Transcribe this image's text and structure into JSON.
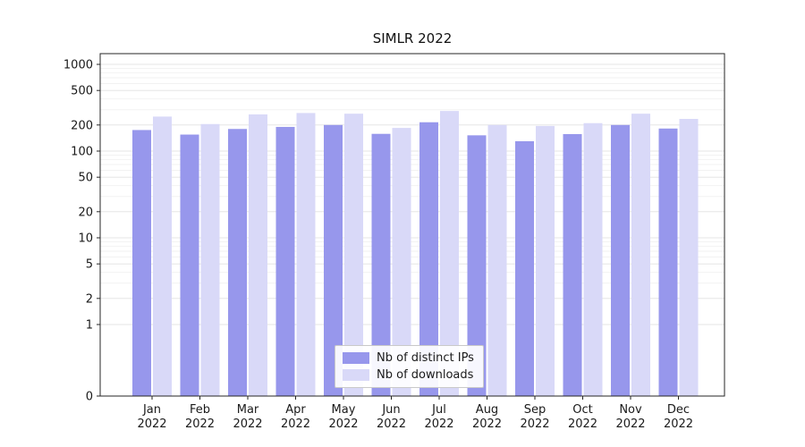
{
  "figure": {
    "background": "#ffffff"
  },
  "chart_data": {
    "type": "bar",
    "title": "SIMLR 2022",
    "categories": [
      "Jan 2022",
      "Feb 2022",
      "Mar 2022",
      "Apr 2022",
      "May 2022",
      "Jun 2022",
      "Jul 2022",
      "Aug 2022",
      "Sep 2022",
      "Oct 2022",
      "Nov 2022",
      "Dec 2022"
    ],
    "series": [
      {
        "name": "Nb of distinct IPs",
        "color": "#9797ec",
        "values": [
          175,
          155,
          180,
          190,
          200,
          158,
          215,
          152,
          130,
          157,
          200,
          182
        ]
      },
      {
        "name": "Nb of downloads",
        "color": "#d9d9f8",
        "values": [
          250,
          205,
          265,
          275,
          270,
          185,
          290,
          200,
          195,
          210,
          270,
          235
        ]
      }
    ],
    "y_axis": {
      "scale": "symlog",
      "ticks": [
        0,
        1,
        2,
        5,
        10,
        20,
        50,
        100,
        200,
        500,
        1000
      ],
      "range": [
        0,
        1300
      ]
    },
    "grid": true,
    "legend": {
      "position": "lower center"
    }
  }
}
